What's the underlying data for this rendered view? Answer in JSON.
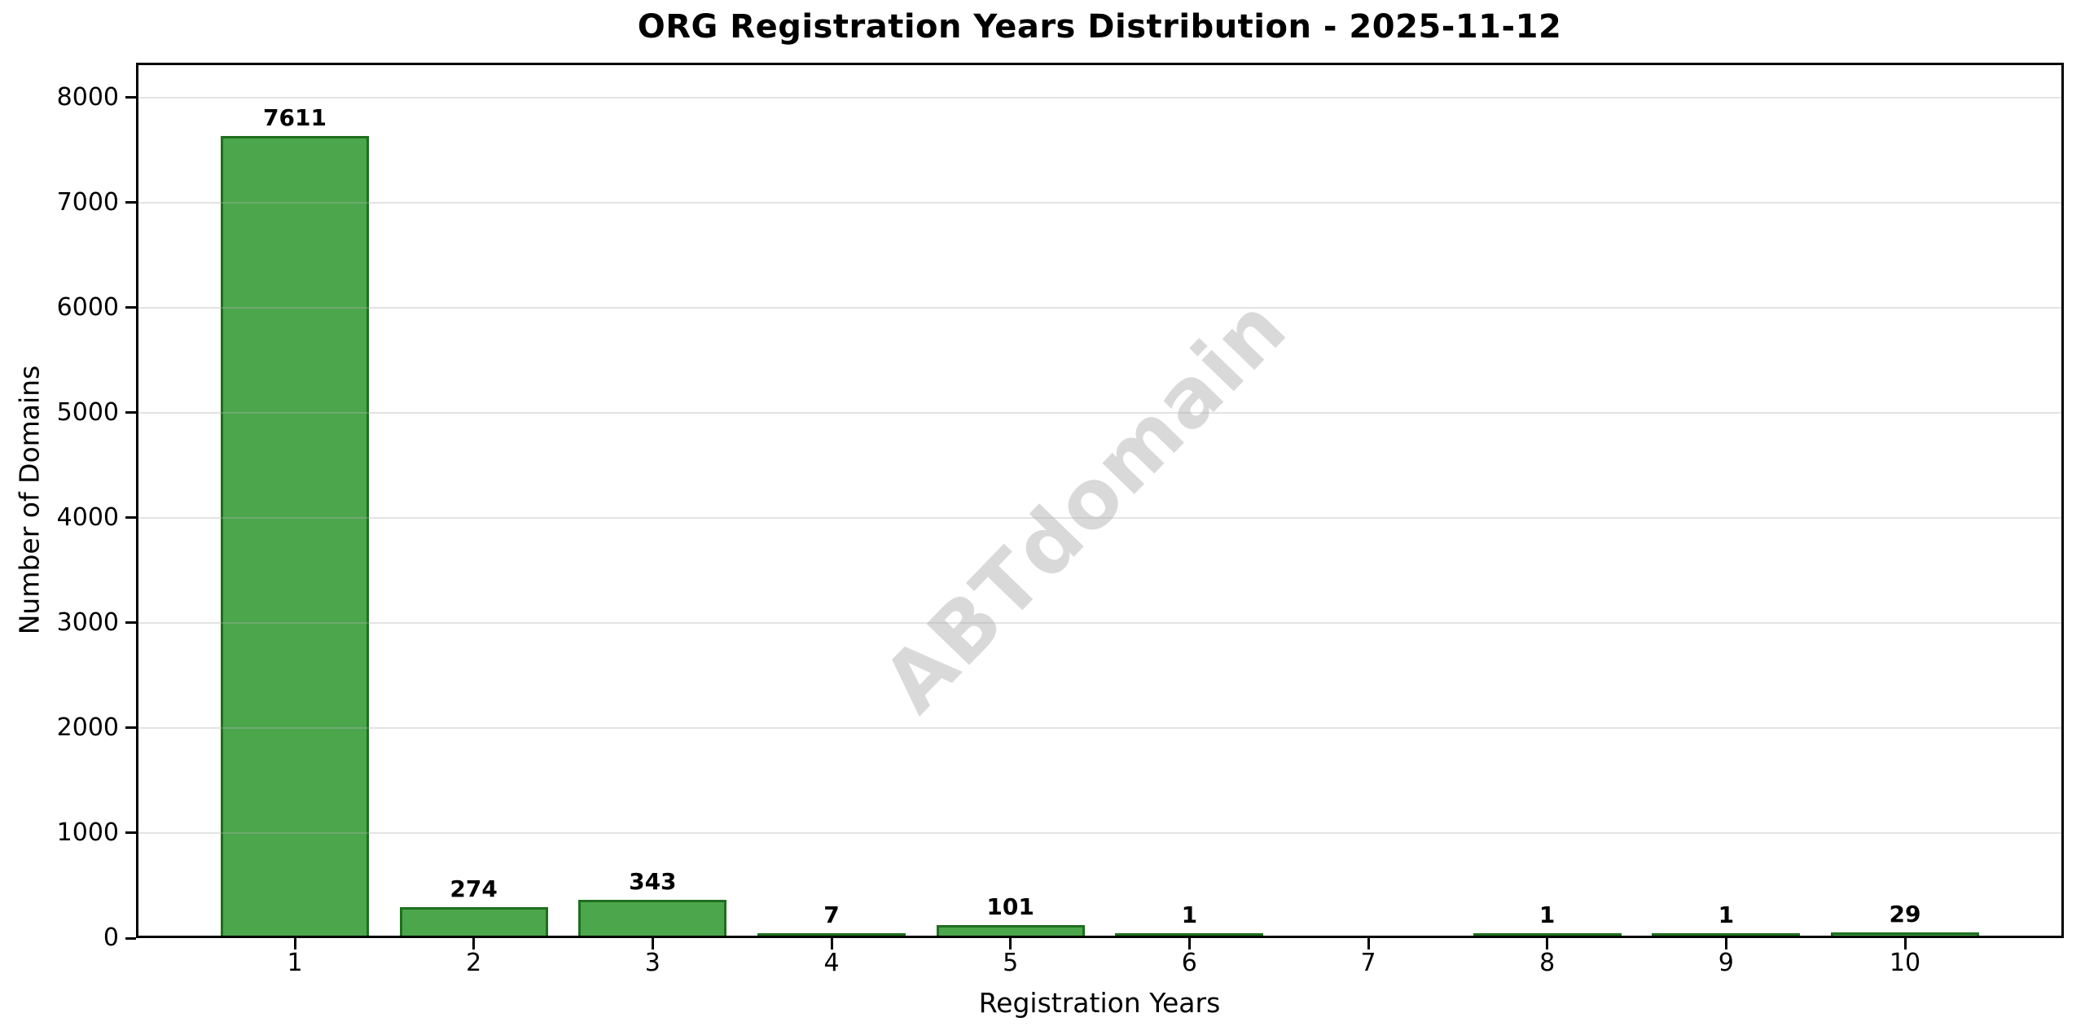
{
  "title": "ORG Registration Years Distribution - 2025-11-12",
  "watermark": "ABTdomain",
  "chart_data": {
    "type": "bar",
    "title": "ORG Registration Years Distribution - 2025-11-12",
    "xlabel": "Registration Years",
    "ylabel": "Number of Domains",
    "categories": [
      "1",
      "2",
      "3",
      "4",
      "5",
      "6",
      "7",
      "8",
      "9",
      "10"
    ],
    "values": [
      7611,
      274,
      343,
      7,
      101,
      1,
      null,
      1,
      1,
      29
    ],
    "bar_value_labels": [
      "7611",
      "274",
      "343",
      "7",
      "101",
      "1",
      "",
      "1",
      "1",
      "29"
    ],
    "yticks": [
      0,
      1000,
      2000,
      3000,
      4000,
      5000,
      6000,
      7000,
      8000
    ],
    "ylim": [
      0,
      8333
    ],
    "grid": "horizontal-only",
    "legend": "none",
    "bar_color": "#4CA64C",
    "bar_edge_color": "#1E6F1E",
    "grid_color": "#B0B0B0",
    "watermark_text": "ABTdomain",
    "watermark_color": "#D9D9D9"
  }
}
